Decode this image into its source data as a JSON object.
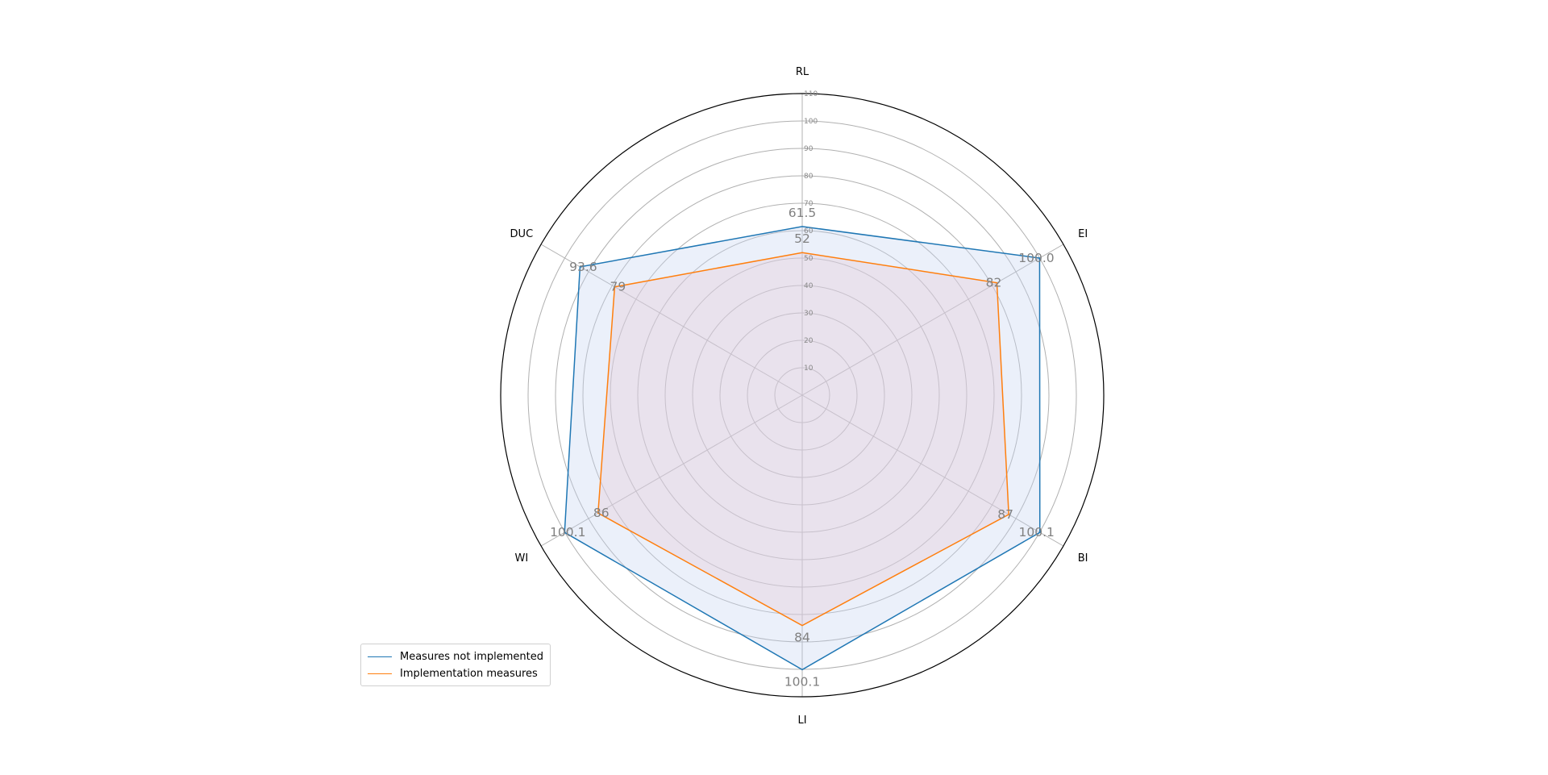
{
  "chart_data": {
    "type": "radar",
    "categories": [
      "RL",
      "EI",
      "BI",
      "LI",
      "WI",
      "DUC"
    ],
    "rlim": [
      0,
      110
    ],
    "rticks": [
      10,
      20,
      30,
      40,
      50,
      60,
      70,
      80,
      90,
      100,
      110
    ],
    "grid": true,
    "legend_position": "lower-left",
    "series": [
      {
        "name": "Measures not implemented",
        "values": [
          61.5,
          100.0,
          100.1,
          100.1,
          100.1,
          93.6
        ],
        "labels": [
          "61.5",
          "100.0",
          "100.1",
          "100.1",
          "100.1",
          "93.6"
        ],
        "color": "#1f77b4",
        "fill": "#c5d5f2"
      },
      {
        "name": "Implementation measures",
        "values": [
          52,
          82,
          87,
          84,
          86,
          79
        ],
        "labels": [
          "52",
          "82",
          "87",
          "84",
          "86",
          "79"
        ],
        "color": "#ff7f0e",
        "fill": "#e6c8d4"
      }
    ]
  }
}
